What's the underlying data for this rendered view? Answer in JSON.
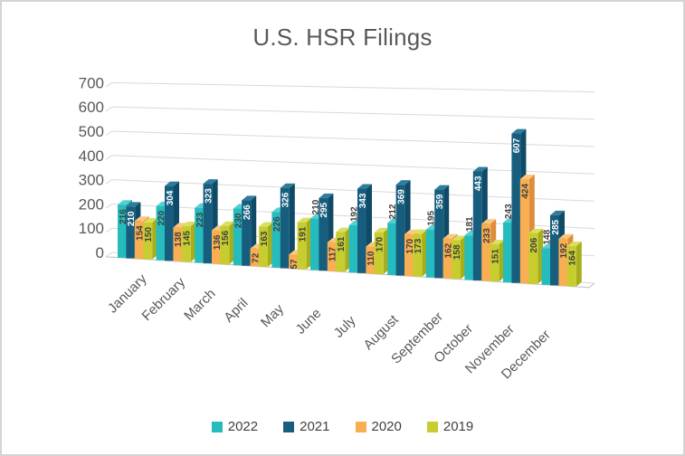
{
  "chart_data": {
    "type": "bar",
    "subtype": "3d-clustered-column",
    "title": "U.S. HSR Filings",
    "categories": [
      "January",
      "February",
      "March",
      "April",
      "May",
      "June",
      "July",
      "August",
      "September",
      "October",
      "November",
      "December"
    ],
    "series": [
      {
        "name": "2022",
        "values": [
          216,
          220,
          223,
          230,
          226,
          210,
          192,
          212,
          195,
          181,
          243,
          148
        ],
        "color": "#26BCBE",
        "color_top": "#55D0D1",
        "color_side": "#1B96A0",
        "label_color": "#404040",
        "label_outside_indices": [
          5,
          6,
          7,
          8,
          9,
          10,
          11
        ]
      },
      {
        "name": "2021",
        "values": [
          210,
          304,
          323,
          266,
          326,
          295,
          343,
          369,
          359,
          443,
          607,
          285
        ],
        "color": "#175D7E",
        "color_top": "#2F7C9C",
        "color_side": "#0F4A66",
        "label_color": "#FFFFFF",
        "label_outside_indices": []
      },
      {
        "name": "2020",
        "values": [
          154,
          138,
          136,
          72,
          57,
          117,
          110,
          170,
          162,
          233,
          424,
          192
        ],
        "color": "#F9AE51",
        "color_top": "#FBC87E",
        "color_side": "#DE8D3B",
        "label_color": "#404040",
        "label_outside_indices": []
      },
      {
        "name": "2019",
        "values": [
          150,
          145,
          156,
          163,
          191,
          161,
          170,
          173,
          158,
          151,
          206,
          164
        ],
        "color": "#C7CD2F",
        "color_top": "#DADF60",
        "color_side": "#A7AE1C",
        "label_color": "#404040",
        "label_outside_indices": []
      }
    ],
    "ylim": [
      0,
      700
    ],
    "y_ticks": [
      0,
      100,
      200,
      300,
      400,
      500,
      600,
      700
    ],
    "grid": true,
    "legend_position": "bottom",
    "title_color": "#595959",
    "axis_text_color": "#595959",
    "gridline_color": "#D9D9D9",
    "floor_edge_color": "#C8C8C8"
  }
}
